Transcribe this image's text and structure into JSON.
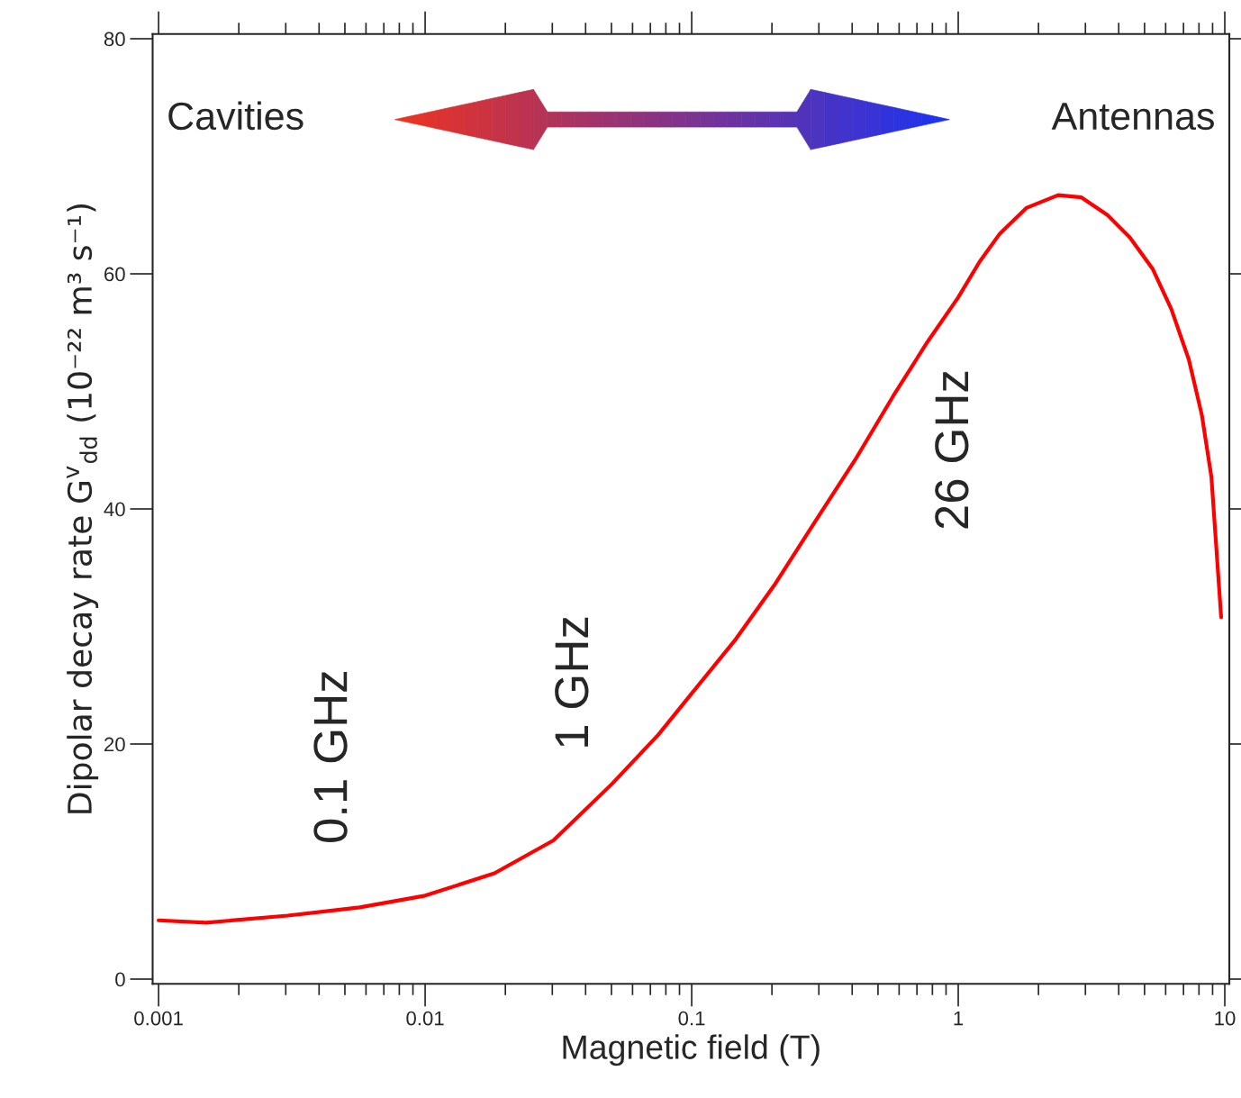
{
  "chart_data": {
    "type": "line",
    "xlabel": "Magnetic field (T)",
    "ylabel": "Dipolar decay rate G$^{v}$$_{dd}$ (10⁻²² m³ s⁻¹)",
    "log": "x",
    "xlim": [
      0.00095,
      10.4
    ],
    "ylim": [
      -0.4,
      80.4
    ],
    "xticks": [
      0.001,
      0.01,
      0.1,
      1,
      10
    ],
    "yticks": [
      0,
      20,
      40,
      60,
      80
    ],
    "grid": false,
    "legend": false,
    "marker": "none",
    "line_style": "solid",
    "series": [
      {
        "color": "#ff0000",
        "x": [
          0.001,
          0.00151,
          0.00305,
          0.00568,
          0.01,
          0.0182,
          0.0303,
          0.0502,
          0.075,
          0.1,
          0.145,
          0.204,
          0.29,
          0.411,
          0.57,
          0.766,
          1.0,
          1.2,
          1.43,
          1.8,
          2.37,
          2.9,
          3.63,
          4.4,
          5.37,
          6.3,
          7.33,
          8.2,
          8.91,
          9.69
        ],
        "values": [
          5.0,
          4.8,
          5.4,
          6.1,
          7.1,
          9.0,
          11.8,
          16.6,
          20.8,
          24.3,
          28.8,
          33.5,
          38.9,
          44.2,
          49.6,
          54.2,
          58.0,
          61.0,
          63.4,
          65.6,
          66.7,
          66.5,
          65.0,
          63.1,
          60.4,
          57.0,
          52.7,
          48.0,
          42.7,
          30.8
        ]
      }
    ],
    "annotations": [
      "Cavities",
      "Antennas",
      "0.1 GHz",
      "1 GHz",
      "26 GHz"
    ]
  }
}
